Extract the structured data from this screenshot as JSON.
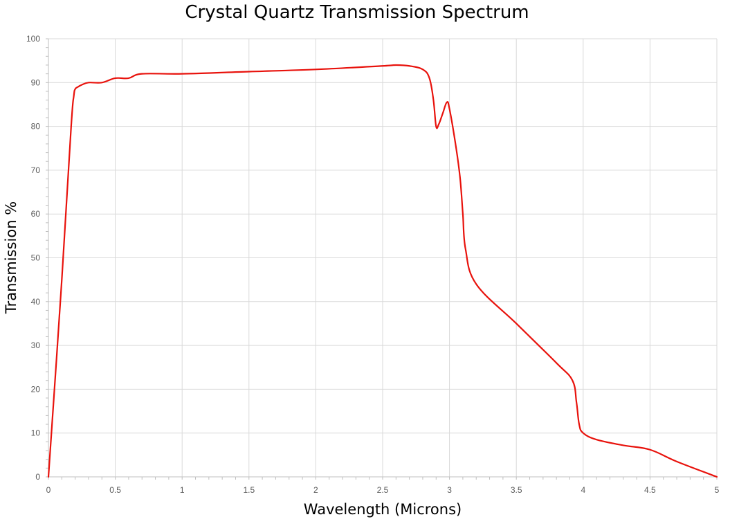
{
  "chart_data": {
    "type": "line",
    "title": "Crystal Quartz Transmission Spectrum",
    "xlabel": "Wavelength (Microns)",
    "ylabel": "Transmission %",
    "xlim": [
      0,
      5
    ],
    "ylim": [
      0,
      100
    ],
    "x_ticks": [
      0,
      0.5,
      1,
      1.5,
      2,
      2.5,
      3,
      3.5,
      4,
      4.5,
      5
    ],
    "x_tick_labels": [
      "0",
      "0.5",
      "1",
      "1.5",
      "2",
      "2.5",
      "3",
      "3.5",
      "4",
      "4.5",
      "5"
    ],
    "y_ticks": [
      0,
      10,
      20,
      30,
      40,
      50,
      60,
      70,
      80,
      90,
      100
    ],
    "y_tick_labels": [
      "0",
      "10",
      "20",
      "30",
      "40",
      "50",
      "60",
      "70",
      "80",
      "90",
      "100"
    ],
    "grid": true,
    "legend": "none",
    "series": [
      {
        "color": "#e8120c",
        "x": [
          0,
          0.1,
          0.17,
          0.19,
          0.2,
          0.22,
          0.25,
          0.3,
          0.4,
          0.5,
          0.6,
          0.7,
          1,
          1.5,
          2,
          2.5,
          2.6,
          2.7,
          2.8,
          2.85,
          2.88,
          2.9,
          2.92,
          2.95,
          2.98,
          3.0,
          3.05,
          3.08,
          3.1,
          3.12,
          3.2,
          3.5,
          3.8,
          3.92,
          3.95,
          3.97,
          4.0,
          4.1,
          4.3,
          4.5,
          4.7,
          5
        ],
        "y": [
          0,
          45,
          80,
          87,
          88.5,
          89,
          89.5,
          90,
          90,
          91,
          91,
          92,
          92,
          92.5,
          93,
          93.8,
          94,
          93.8,
          93,
          91,
          86,
          80,
          80.5,
          83,
          85.5,
          84,
          75,
          68,
          60,
          52,
          44,
          35,
          26,
          22,
          17,
          12,
          10,
          8.5,
          7.2,
          6.2,
          3.5,
          0
        ]
      }
    ]
  }
}
